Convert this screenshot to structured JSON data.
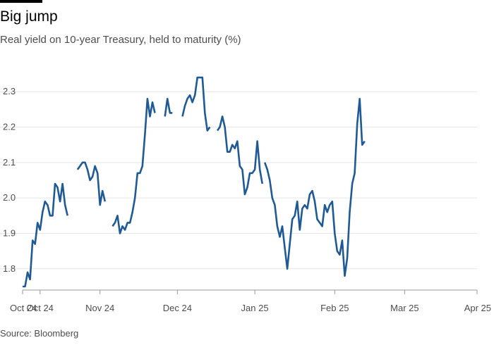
{
  "title": "Big jump",
  "subtitle": "Real yield on 10-year Treasury, held to maturity (%)",
  "source": "Source: Bloomberg",
  "colors": {
    "line": "#1f5a96",
    "grid": "#e6e6e6",
    "axis": "#999999"
  },
  "chart_data": {
    "type": "line",
    "title": "Big jump",
    "subtitle": "Real yield on 10-year Treasury, held to maturity (%)",
    "xlabel": "",
    "ylabel": "",
    "ylim": [
      1.74,
      2.36
    ],
    "y_ticks": [
      1.8,
      1.9,
      2.0,
      2.1,
      2.2,
      2.3
    ],
    "y_tick_labels": [
      "1.8",
      "1.9",
      "2.0",
      "2.1",
      "2.2",
      "2.3"
    ],
    "xlim": [
      "2024-10-01",
      "2025-04-01"
    ],
    "x_ticks": [
      {
        "date": "2024-10-01",
        "label": "Oct 24"
      },
      {
        "date": "2024-10-08",
        "label": "Oct 24"
      },
      {
        "date": "2024-11-01",
        "label": "Nov 24"
      },
      {
        "date": "2024-12-02",
        "label": "Dec 24"
      },
      {
        "date": "2025-01-02",
        "label": "Jan 25"
      },
      {
        "date": "2025-02-03",
        "label": "Feb 25"
      },
      {
        "date": "2025-03-03",
        "label": "Mar 25"
      },
      {
        "date": "2025-04-01",
        "label": "Apr 25"
      }
    ],
    "grid": true,
    "legend": "none",
    "series": [
      {
        "segments": [
          [
            [
              "2024-10-01",
              1.75
            ],
            [
              "2024-10-02",
              1.75
            ],
            [
              "2024-10-03",
              1.79
            ],
            [
              "2024-10-04",
              1.77
            ],
            [
              "2024-10-05",
              1.88
            ],
            [
              "2024-10-06",
              1.87
            ],
            [
              "2024-10-07",
              1.93
            ],
            [
              "2024-10-08",
              1.91
            ],
            [
              "2024-10-09",
              1.96
            ],
            [
              "2024-10-10",
              1.99
            ],
            [
              "2024-10-11",
              1.98
            ],
            [
              "2024-10-12",
              1.95
            ],
            [
              "2024-10-13",
              1.95
            ],
            [
              "2024-10-14",
              2.04
            ],
            [
              "2024-10-15",
              2.03
            ],
            [
              "2024-10-16",
              1.99
            ],
            [
              "2024-10-17",
              2.04
            ],
            [
              "2024-10-18",
              1.98
            ],
            [
              "2024-10-19",
              1.95
            ]
          ],
          [
            [
              "2024-10-23",
              2.08
            ],
            [
              "2024-10-24",
              2.09
            ],
            [
              "2024-10-25",
              2.1
            ],
            [
              "2024-10-26",
              2.1
            ],
            [
              "2024-10-27",
              2.08
            ],
            [
              "2024-10-28",
              2.05
            ],
            [
              "2024-10-29",
              2.06
            ],
            [
              "2024-10-30",
              2.09
            ],
            [
              "2024-10-31",
              2.07
            ],
            [
              "2024-11-01",
              1.98
            ],
            [
              "2024-11-02",
              2.02
            ],
            [
              "2024-11-03",
              1.99
            ]
          ],
          [
            [
              "2024-11-06",
              1.92
            ],
            [
              "2024-11-07",
              1.93
            ],
            [
              "2024-11-08",
              1.95
            ],
            [
              "2024-11-09",
              1.9
            ],
            [
              "2024-11-10",
              1.92
            ],
            [
              "2024-11-11",
              1.91
            ],
            [
              "2024-11-12",
              1.93
            ],
            [
              "2024-11-13",
              1.93
            ],
            [
              "2024-11-14",
              1.96
            ],
            [
              "2024-11-15",
              2.0
            ],
            [
              "2024-11-16",
              2.07
            ],
            [
              "2024-11-17",
              2.07
            ],
            [
              "2024-11-18",
              2.09
            ],
            [
              "2024-11-19",
              2.18
            ],
            [
              "2024-11-20",
              2.28
            ],
            [
              "2024-11-21",
              2.23
            ],
            [
              "2024-11-22",
              2.27
            ],
            [
              "2024-11-23",
              2.24
            ]
          ],
          [
            [
              "2024-11-27",
              2.23
            ],
            [
              "2024-11-28",
              2.28
            ],
            [
              "2024-11-29",
              2.24
            ],
            [
              "2024-11-30",
              2.24
            ]
          ],
          [
            [
              "2024-12-04",
              2.23
            ],
            [
              "2024-12-05",
              2.26
            ],
            [
              "2024-12-06",
              2.28
            ],
            [
              "2024-12-07",
              2.29
            ],
            [
              "2024-12-08",
              2.27
            ],
            [
              "2024-12-09",
              2.29
            ],
            [
              "2024-12-10",
              2.34
            ],
            [
              "2024-12-11",
              2.34
            ],
            [
              "2024-12-12",
              2.34
            ],
            [
              "2024-12-13",
              2.24
            ],
            [
              "2024-12-14",
              2.19
            ],
            [
              "2024-12-15",
              2.2
            ]
          ],
          [
            [
              "2024-12-18",
              2.19
            ],
            [
              "2024-12-19",
              2.2
            ],
            [
              "2024-12-20",
              2.23
            ],
            [
              "2024-12-21",
              2.2
            ],
            [
              "2024-12-22",
              2.13
            ],
            [
              "2024-12-23",
              2.13
            ],
            [
              "2024-12-24",
              2.15
            ],
            [
              "2024-12-25",
              2.14
            ],
            [
              "2024-12-26",
              2.16
            ],
            [
              "2024-12-27",
              2.09
            ],
            [
              "2024-12-28",
              2.08
            ],
            [
              "2024-12-29",
              2.01
            ],
            [
              "2024-12-30",
              2.03
            ],
            [
              "2024-12-31",
              2.07
            ],
            [
              "2025-01-01",
              2.07
            ],
            [
              "2025-01-02",
              2.08
            ],
            [
              "2025-01-03",
              2.16
            ],
            [
              "2025-01-04",
              2.08
            ],
            [
              "2025-01-05",
              2.04
            ]
          ],
          [
            [
              "2025-01-06",
              2.1
            ],
            [
              "2025-01-07",
              2.08
            ],
            [
              "2025-01-08",
              2.05
            ],
            [
              "2025-01-09",
              2.0
            ],
            [
              "2025-01-10",
              1.98
            ],
            [
              "2025-01-11",
              1.92
            ],
            [
              "2025-01-12",
              1.89
            ],
            [
              "2025-01-13",
              1.92
            ],
            [
              "2025-01-14",
              1.86
            ],
            [
              "2025-01-15",
              1.8
            ],
            [
              "2025-01-16",
              1.87
            ],
            [
              "2025-01-17",
              1.94
            ],
            [
              "2025-01-18",
              1.95
            ],
            [
              "2025-01-19",
              1.99
            ],
            [
              "2025-01-20",
              1.91
            ],
            [
              "2025-01-21",
              1.97
            ],
            [
              "2025-01-22",
              1.98
            ],
            [
              "2025-01-23",
              1.97
            ],
            [
              "2025-01-24",
              2.01
            ],
            [
              "2025-01-25",
              2.02
            ],
            [
              "2025-01-26",
              1.99
            ],
            [
              "2025-01-27",
              1.94
            ],
            [
              "2025-01-28",
              1.93
            ],
            [
              "2025-01-29",
              1.92
            ],
            [
              "2025-01-30",
              1.98
            ],
            [
              "2025-01-31",
              1.96
            ],
            [
              "2025-02-01",
              1.98
            ],
            [
              "2025-02-02",
              1.99
            ],
            [
              "2025-02-03",
              1.9
            ],
            [
              "2025-02-04",
              1.85
            ],
            [
              "2025-02-05",
              1.84
            ],
            [
              "2025-02-06",
              1.88
            ],
            [
              "2025-02-07",
              1.78
            ],
            [
              "2025-02-08",
              1.83
            ],
            [
              "2025-02-09",
              1.96
            ],
            [
              "2025-02-10",
              2.04
            ],
            [
              "2025-02-11",
              2.07
            ],
            [
              "2025-02-12",
              2.21
            ],
            [
              "2025-02-13",
              2.28
            ],
            [
              "2025-02-14",
              2.15
            ],
            [
              "2025-02-15",
              2.16
            ]
          ]
        ]
      }
    ]
  }
}
